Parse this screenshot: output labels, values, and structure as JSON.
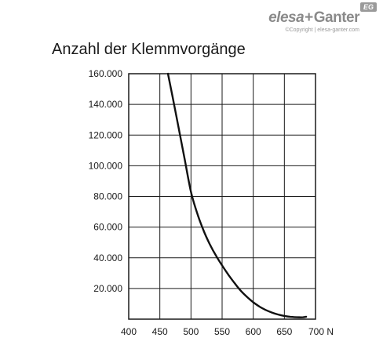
{
  "logo": {
    "brand1": "elesa",
    "plus": "+",
    "brand2": "Ganter",
    "badge": "EG",
    "copyright": "©Copyright | elesa-ganter.com"
  },
  "chart_data": {
    "type": "line",
    "title": "Anzahl der Klemmvorgänge",
    "xlabel": "",
    "ylabel": "",
    "xlim": [
      400,
      700
    ],
    "ylim": [
      0,
      160000
    ],
    "x_ticks": [
      400,
      450,
      500,
      550,
      600,
      650,
      700
    ],
    "x_tick_labels": [
      "400",
      "450",
      "500",
      "550",
      "600",
      "650",
      "700 N"
    ],
    "y_ticks": [
      20000,
      40000,
      60000,
      80000,
      100000,
      120000,
      140000,
      160000
    ],
    "y_tick_labels": [
      "20.000",
      "40.000",
      "60.000",
      "80.000",
      "100.000",
      "120.000",
      "140.000",
      "160.000"
    ],
    "grid": true,
    "series": [
      {
        "x": [
          463,
          470,
          480,
          490,
          500,
          510,
          520,
          530,
          540,
          550,
          560,
          570,
          580,
          590,
          600,
          610,
          620,
          630,
          640,
          650,
          660,
          670,
          680,
          685
        ],
        "y": [
          160000,
          146000,
          125000,
          104000,
          83000,
          69000,
          58000,
          49000,
          41500,
          35000,
          29000,
          23500,
          18500,
          14500,
          11000,
          8200,
          6000,
          4300,
          3000,
          2100,
          1500,
          1250,
          1250,
          1600
        ]
      }
    ]
  }
}
